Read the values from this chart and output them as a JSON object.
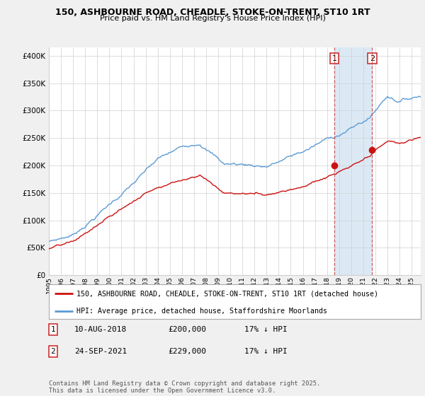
{
  "title_line1": "150, ASHBOURNE ROAD, CHEADLE, STOKE-ON-TRENT, ST10 1RT",
  "title_line2": "Price paid vs. HM Land Registry's House Price Index (HPI)",
  "ytick_values": [
    0,
    50000,
    100000,
    150000,
    200000,
    250000,
    300000,
    350000,
    400000
  ],
  "ylim": [
    0,
    415000
  ],
  "xlim_start": 1995.0,
  "xlim_end": 2025.75,
  "xtick_years": [
    1995,
    1996,
    1997,
    1998,
    1999,
    2000,
    2001,
    2002,
    2003,
    2004,
    2005,
    2006,
    2007,
    2008,
    2009,
    2010,
    2011,
    2012,
    2013,
    2014,
    2015,
    2016,
    2017,
    2018,
    2019,
    2020,
    2021,
    2022,
    2023,
    2024,
    2025
  ],
  "hpi_color": "#5b9bd5",
  "price_color": "#cc1111",
  "shade_color": "#dce9f5",
  "marker1_x": 2018.608,
  "marker1_y": 200000,
  "marker2_x": 2021.73,
  "marker2_y": 229000,
  "legend_line1": "150, ASHBOURNE ROAD, CHEADLE, STOKE-ON-TRENT, ST10 1RT (detached house)",
  "legend_line2": "HPI: Average price, detached house, Staffordshire Moorlands",
  "annotation1_label": "1",
  "annotation1_date": "10-AUG-2018",
  "annotation1_price": "£200,000",
  "annotation1_hpi": "17% ↓ HPI",
  "annotation2_label": "2",
  "annotation2_date": "24-SEP-2021",
  "annotation2_price": "£229,000",
  "annotation2_hpi": "17% ↓ HPI",
  "footer": "Contains HM Land Registry data © Crown copyright and database right 2025.\nThis data is licensed under the Open Government Licence v3.0.",
  "background_color": "#f0f0f0",
  "plot_bg_color": "#ffffff",
  "grid_color": "#d0d0d0"
}
